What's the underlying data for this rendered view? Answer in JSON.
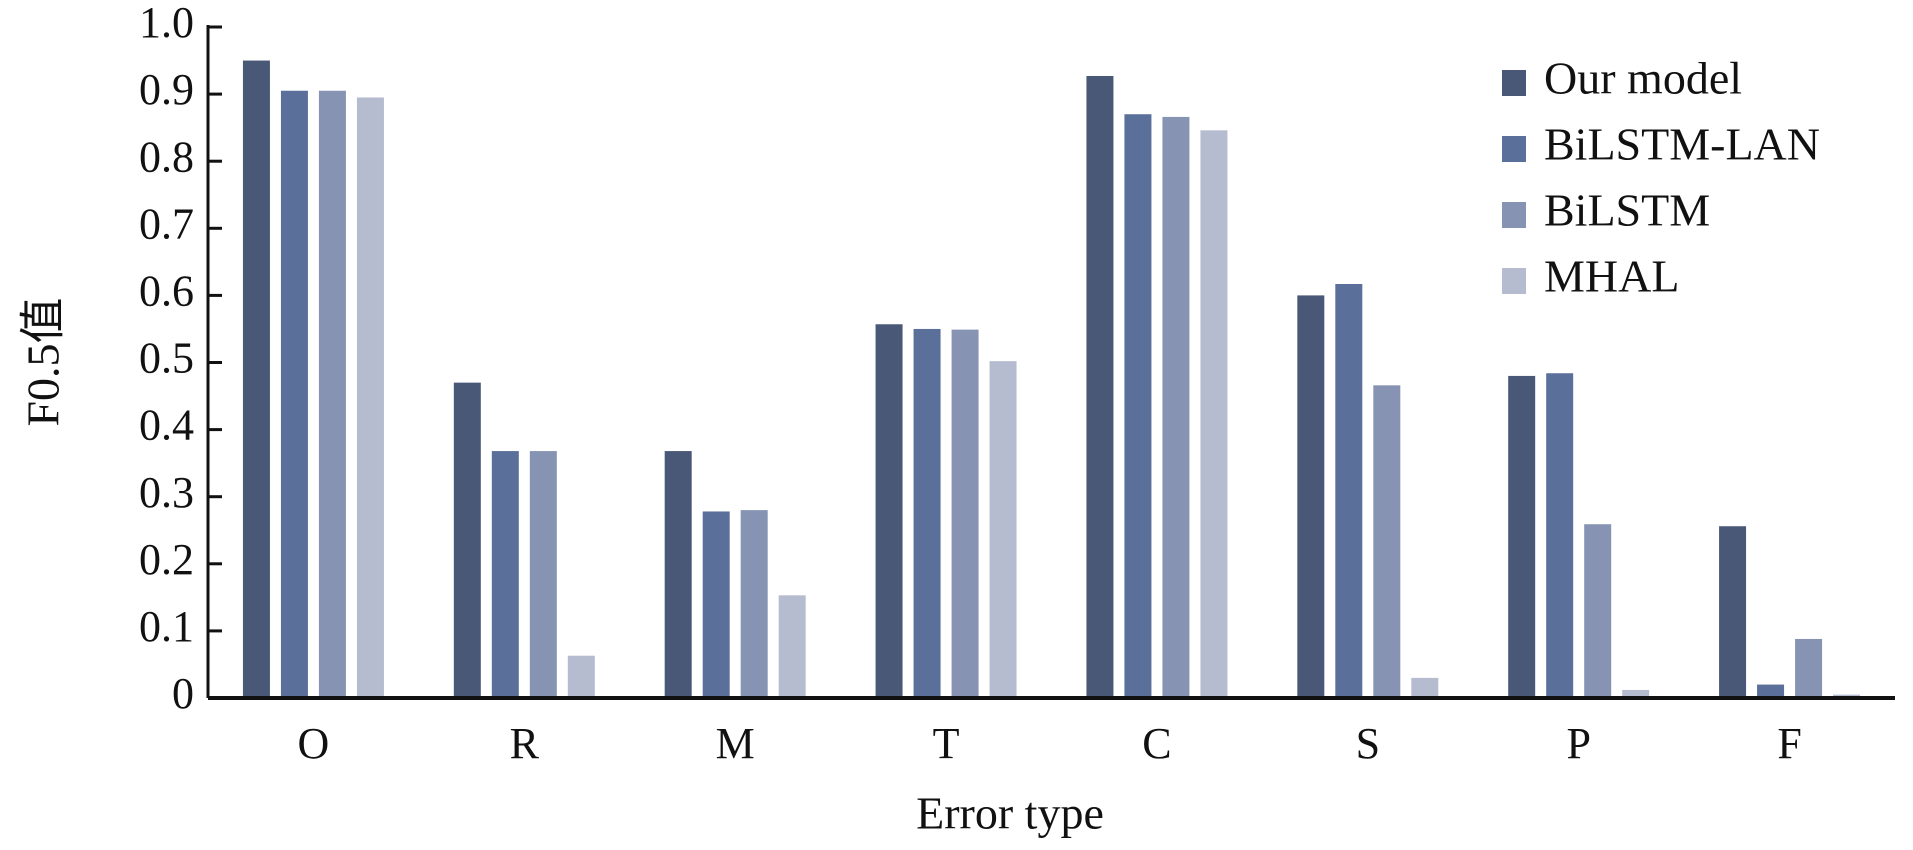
{
  "chart_data": {
    "type": "bar",
    "x_label": "Error type",
    "y_label": "F0.5值",
    "categories": [
      "O",
      "R",
      "M",
      "T",
      "C",
      "S",
      "P",
      "F"
    ],
    "series": [
      {
        "name": "Our model",
        "color": "#4a5878",
        "values": [
          0.95,
          0.47,
          0.368,
          0.557,
          0.927,
          0.6,
          0.48,
          0.256
        ]
      },
      {
        "name": "BiLSTM-LAN",
        "color": "#5b6f9b",
        "values": [
          0.905,
          0.368,
          0.278,
          0.55,
          0.87,
          0.617,
          0.484,
          0.02
        ]
      },
      {
        "name": "BiLSTM",
        "color": "#8693b3",
        "values": [
          0.905,
          0.368,
          0.28,
          0.549,
          0.866,
          0.466,
          0.259,
          0.088
        ]
      },
      {
        "name": "MHAL",
        "color": "#b5bcd0",
        "values": [
          0.895,
          0.063,
          0.153,
          0.502,
          0.846,
          0.03,
          0.012,
          0.005
        ]
      }
    ],
    "ylim": [
      0,
      1
    ],
    "yticks": [
      0,
      0.1,
      0.2,
      0.3,
      0.4,
      0.5,
      0.6,
      0.7,
      0.8,
      0.9,
      {
        "value": 1,
        "label": "1.0"
      }
    ],
    "legend": "upper right",
    "grid": false
  }
}
